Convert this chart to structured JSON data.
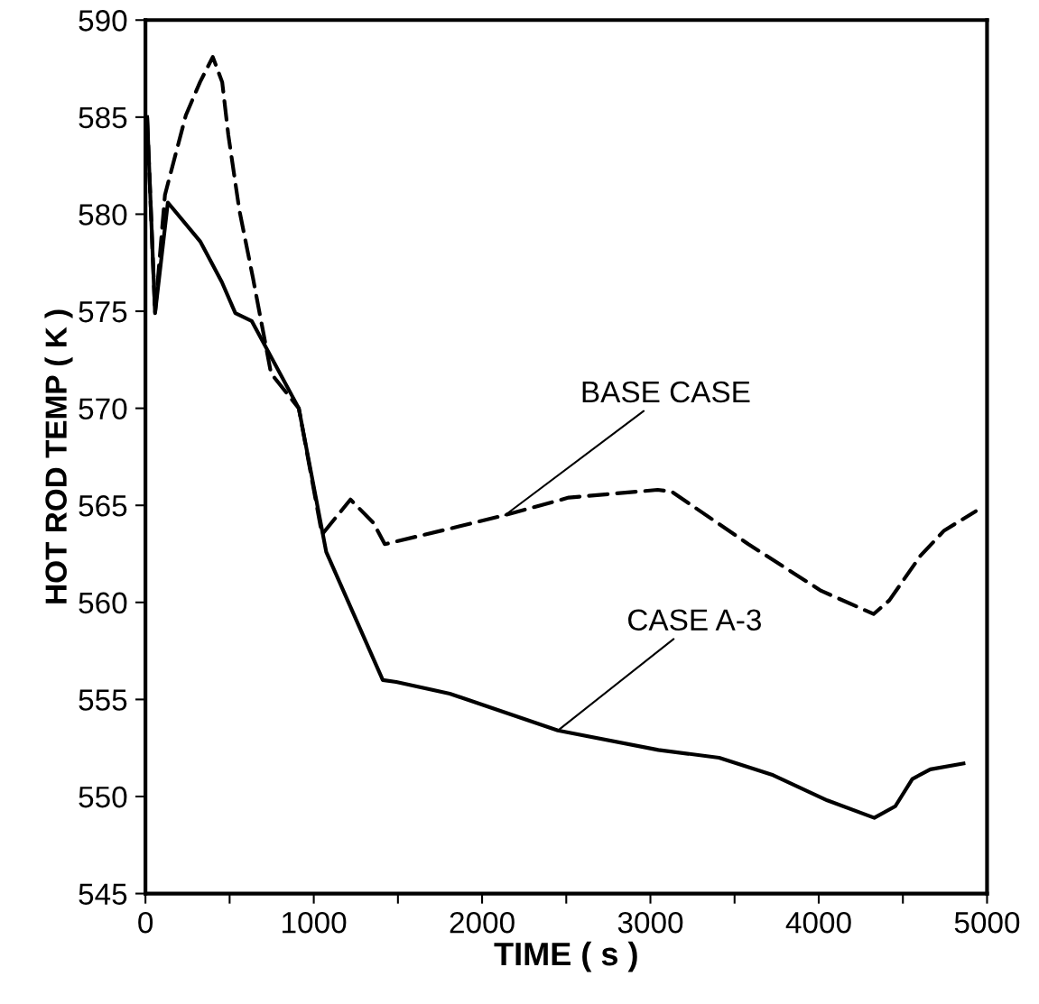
{
  "chart_data": {
    "type": "line",
    "xlabel": "TIME ( s )",
    "ylabel": "HOT ROD TEMP ( K )",
    "xlim": [
      0,
      5000
    ],
    "ylim": [
      545,
      590
    ],
    "xticks": [
      0,
      {
        "value": 500,
        "label": null
      },
      1000,
      {
        "value": 1500,
        "label": null
      },
      2000,
      {
        "value": 2500,
        "label": null
      },
      3000,
      {
        "value": 3500,
        "label": null
      },
      4000,
      {
        "value": 4500,
        "label": null
      },
      5000
    ],
    "yticks": [
      545,
      550,
      555,
      560,
      565,
      570,
      575,
      580,
      585,
      590
    ],
    "grid": false,
    "legend": false,
    "marker": "none",
    "series": [
      {
        "color": "#000000",
        "line_style": "dashed",
        "x": [
          10,
          57,
          116,
          240,
          324,
          400,
          456,
          492,
          558,
          639,
          746,
          911,
          1049,
          1218,
          1354,
          1422,
          1808,
          2137,
          2515,
          3043,
          3128,
          3582,
          4014,
          4326,
          4419,
          4604,
          4745,
          4933
        ],
        "values": [
          585.0,
          574.9,
          581.0,
          585.1,
          586.8,
          588.1,
          586.8,
          584.1,
          580.2,
          576.7,
          571.8,
          570.0,
          563.5,
          565.3,
          564.1,
          563.0,
          563.8,
          564.5,
          565.4,
          565.8,
          565.7,
          563.0,
          560.6,
          559.4,
          560.1,
          562.4,
          563.7,
          564.7
        ]
      },
      {
        "color": "#000000",
        "line_style": "solid",
        "x": [
          10,
          57,
          133,
          325,
          454,
          534,
          631,
          911,
          1074,
          1410,
          1490,
          1808,
          2450,
          3047,
          3408,
          3729,
          4051,
          4330,
          4455,
          4556,
          4663,
          4860
        ],
        "values": [
          585.0,
          574.9,
          580.6,
          578.6,
          576.5,
          574.9,
          574.5,
          570.0,
          562.6,
          556.0,
          555.9,
          555.3,
          553.4,
          552.4,
          552.0,
          551.1,
          549.8,
          548.9,
          549.5,
          550.9,
          551.4,
          551.7
        ]
      }
    ],
    "annotations": [
      {
        "text": "BASE CASE",
        "x": 2137,
        "y": 564.5
      },
      {
        "text": "CASE A-3",
        "x": 2450,
        "y": 553.4
      }
    ]
  }
}
